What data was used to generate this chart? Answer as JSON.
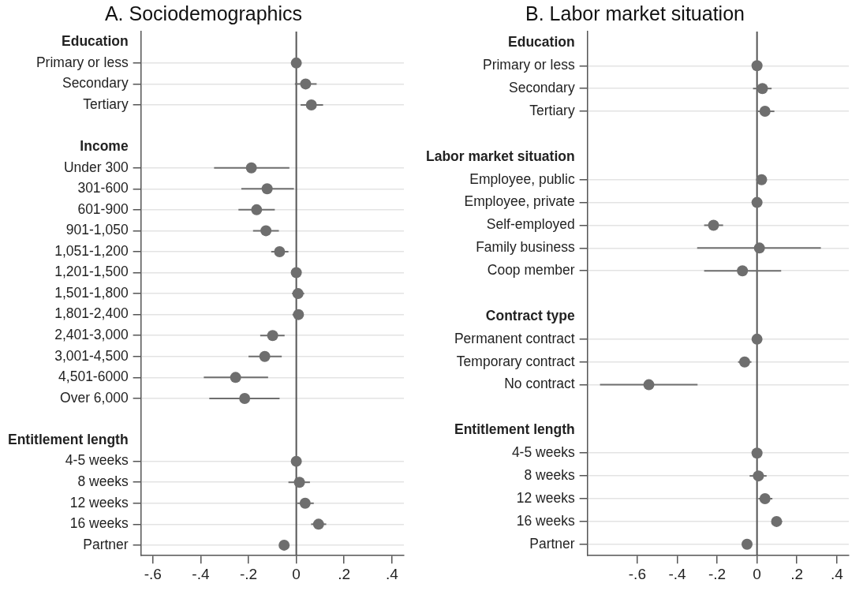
{
  "chart_data": [
    {
      "type": "scatter",
      "orientation": "horizontal",
      "title": "A. Sociodemographics",
      "categories": [
        "Education",
        "Primary or less",
        "Secondary",
        "Tertiary",
        null,
        "Income",
        "Under 300",
        "301-600",
        "601-900",
        "901-1,050",
        "1,051-1,200",
        "1,201-1,500",
        "1,501-1,800",
        "1,801-2,400",
        "2,401-3,000",
        "3,001-4,500",
        "4,501-6000",
        "Over 6,000",
        null,
        "Entitlement length",
        "4-5 weeks",
        "8 weeks",
        "12 weeks",
        "16 weeks",
        "Partner"
      ],
      "values": [
        null,
        0,
        0.039,
        0.063,
        null,
        null,
        -0.188,
        -0.122,
        -0.166,
        -0.127,
        -0.07,
        0,
        0.007,
        0.009,
        -0.099,
        -0.132,
        -0.254,
        -0.216,
        null,
        null,
        0,
        0.013,
        0.037,
        0.093,
        -0.051
      ],
      "errors": [
        null,
        null,
        [
          -0.006,
          0.085
        ],
        [
          0.018,
          0.112
        ],
        null,
        null,
        [
          -0.344,
          -0.029
        ],
        [
          -0.23,
          -0.01
        ],
        [
          -0.242,
          -0.09
        ],
        [
          -0.181,
          -0.073
        ],
        [
          -0.105,
          -0.033
        ],
        null,
        [
          -0.018,
          0.033
        ],
        [
          -0.016,
          0.03
        ],
        [
          -0.151,
          -0.049
        ],
        [
          -0.2,
          -0.061
        ],
        [
          -0.387,
          -0.118
        ],
        [
          -0.364,
          -0.07
        ],
        null,
        null,
        null,
        [
          -0.033,
          0.057
        ],
        [
          0.004,
          0.073
        ],
        [
          0.062,
          0.125
        ],
        null
      ],
      "color": "#6e6e6e",
      "marker": "circle",
      "grid": "y",
      "xlim": [
        -0.65,
        0.45
      ],
      "xticks": [
        {
          "value": -0.6,
          "label": "-.6"
        },
        {
          "value": -0.4,
          "label": "-.4"
        },
        {
          "value": -0.2,
          "label": "-.2"
        },
        0,
        {
          "value": 0.2,
          "label": ".2"
        },
        {
          "value": 0.4,
          "label": ".4"
        }
      ],
      "ref_lines": [
        {
          "axis": "x",
          "value": 0,
          "color": "#555555"
        }
      ]
    },
    {
      "type": "scatter",
      "orientation": "horizontal",
      "title": "B. Labor market situation",
      "categories": [
        "Education",
        "Primary or less",
        "Secondary",
        "Tertiary",
        null,
        "Labor market situation",
        "Employee, public",
        "Employee, private",
        "Self-employed",
        "Family business",
        "Coop member",
        null,
        "Contract type",
        "Permanent contract",
        "Temporary contract",
        "No contract",
        null,
        "Entitlement length",
        "4-5 weeks",
        "8 weeks",
        "12 weeks",
        "16 weeks",
        "Partner"
      ],
      "values": [
        null,
        0,
        0.027,
        0.04,
        null,
        null,
        0.023,
        0,
        -0.218,
        0.012,
        -0.073,
        null,
        null,
        0,
        -0.062,
        -0.542,
        null,
        null,
        0,
        0.007,
        0.04,
        0.098,
        -0.05
      ],
      "errors": [
        null,
        null,
        [
          -0.02,
          0.073
        ],
        [
          0.005,
          0.087
        ],
        null,
        null,
        null,
        null,
        [
          -0.265,
          -0.17
        ],
        [
          -0.3,
          0.32
        ],
        [
          -0.265,
          0.121
        ],
        null,
        null,
        null,
        [
          -0.095,
          -0.028
        ],
        [
          -0.787,
          -0.298
        ],
        null,
        null,
        null,
        [
          -0.037,
          0.048
        ],
        [
          0.007,
          0.077
        ],
        [
          0.073,
          0.126
        ],
        null
      ],
      "color": "#6e6e6e",
      "marker": "circle",
      "grid": "y",
      "xlim": [
        -0.85,
        0.46
      ],
      "xticks": [
        {
          "value": -0.6,
          "label": "-.6"
        },
        {
          "value": -0.4,
          "label": "-.4"
        },
        {
          "value": -0.2,
          "label": "-.2"
        },
        0,
        {
          "value": 0.2,
          "label": ".2"
        },
        {
          "value": 0.4,
          "label": ".4"
        }
      ],
      "ref_lines": [
        {
          "axis": "x",
          "value": 0,
          "color": "#555555"
        }
      ]
    }
  ]
}
